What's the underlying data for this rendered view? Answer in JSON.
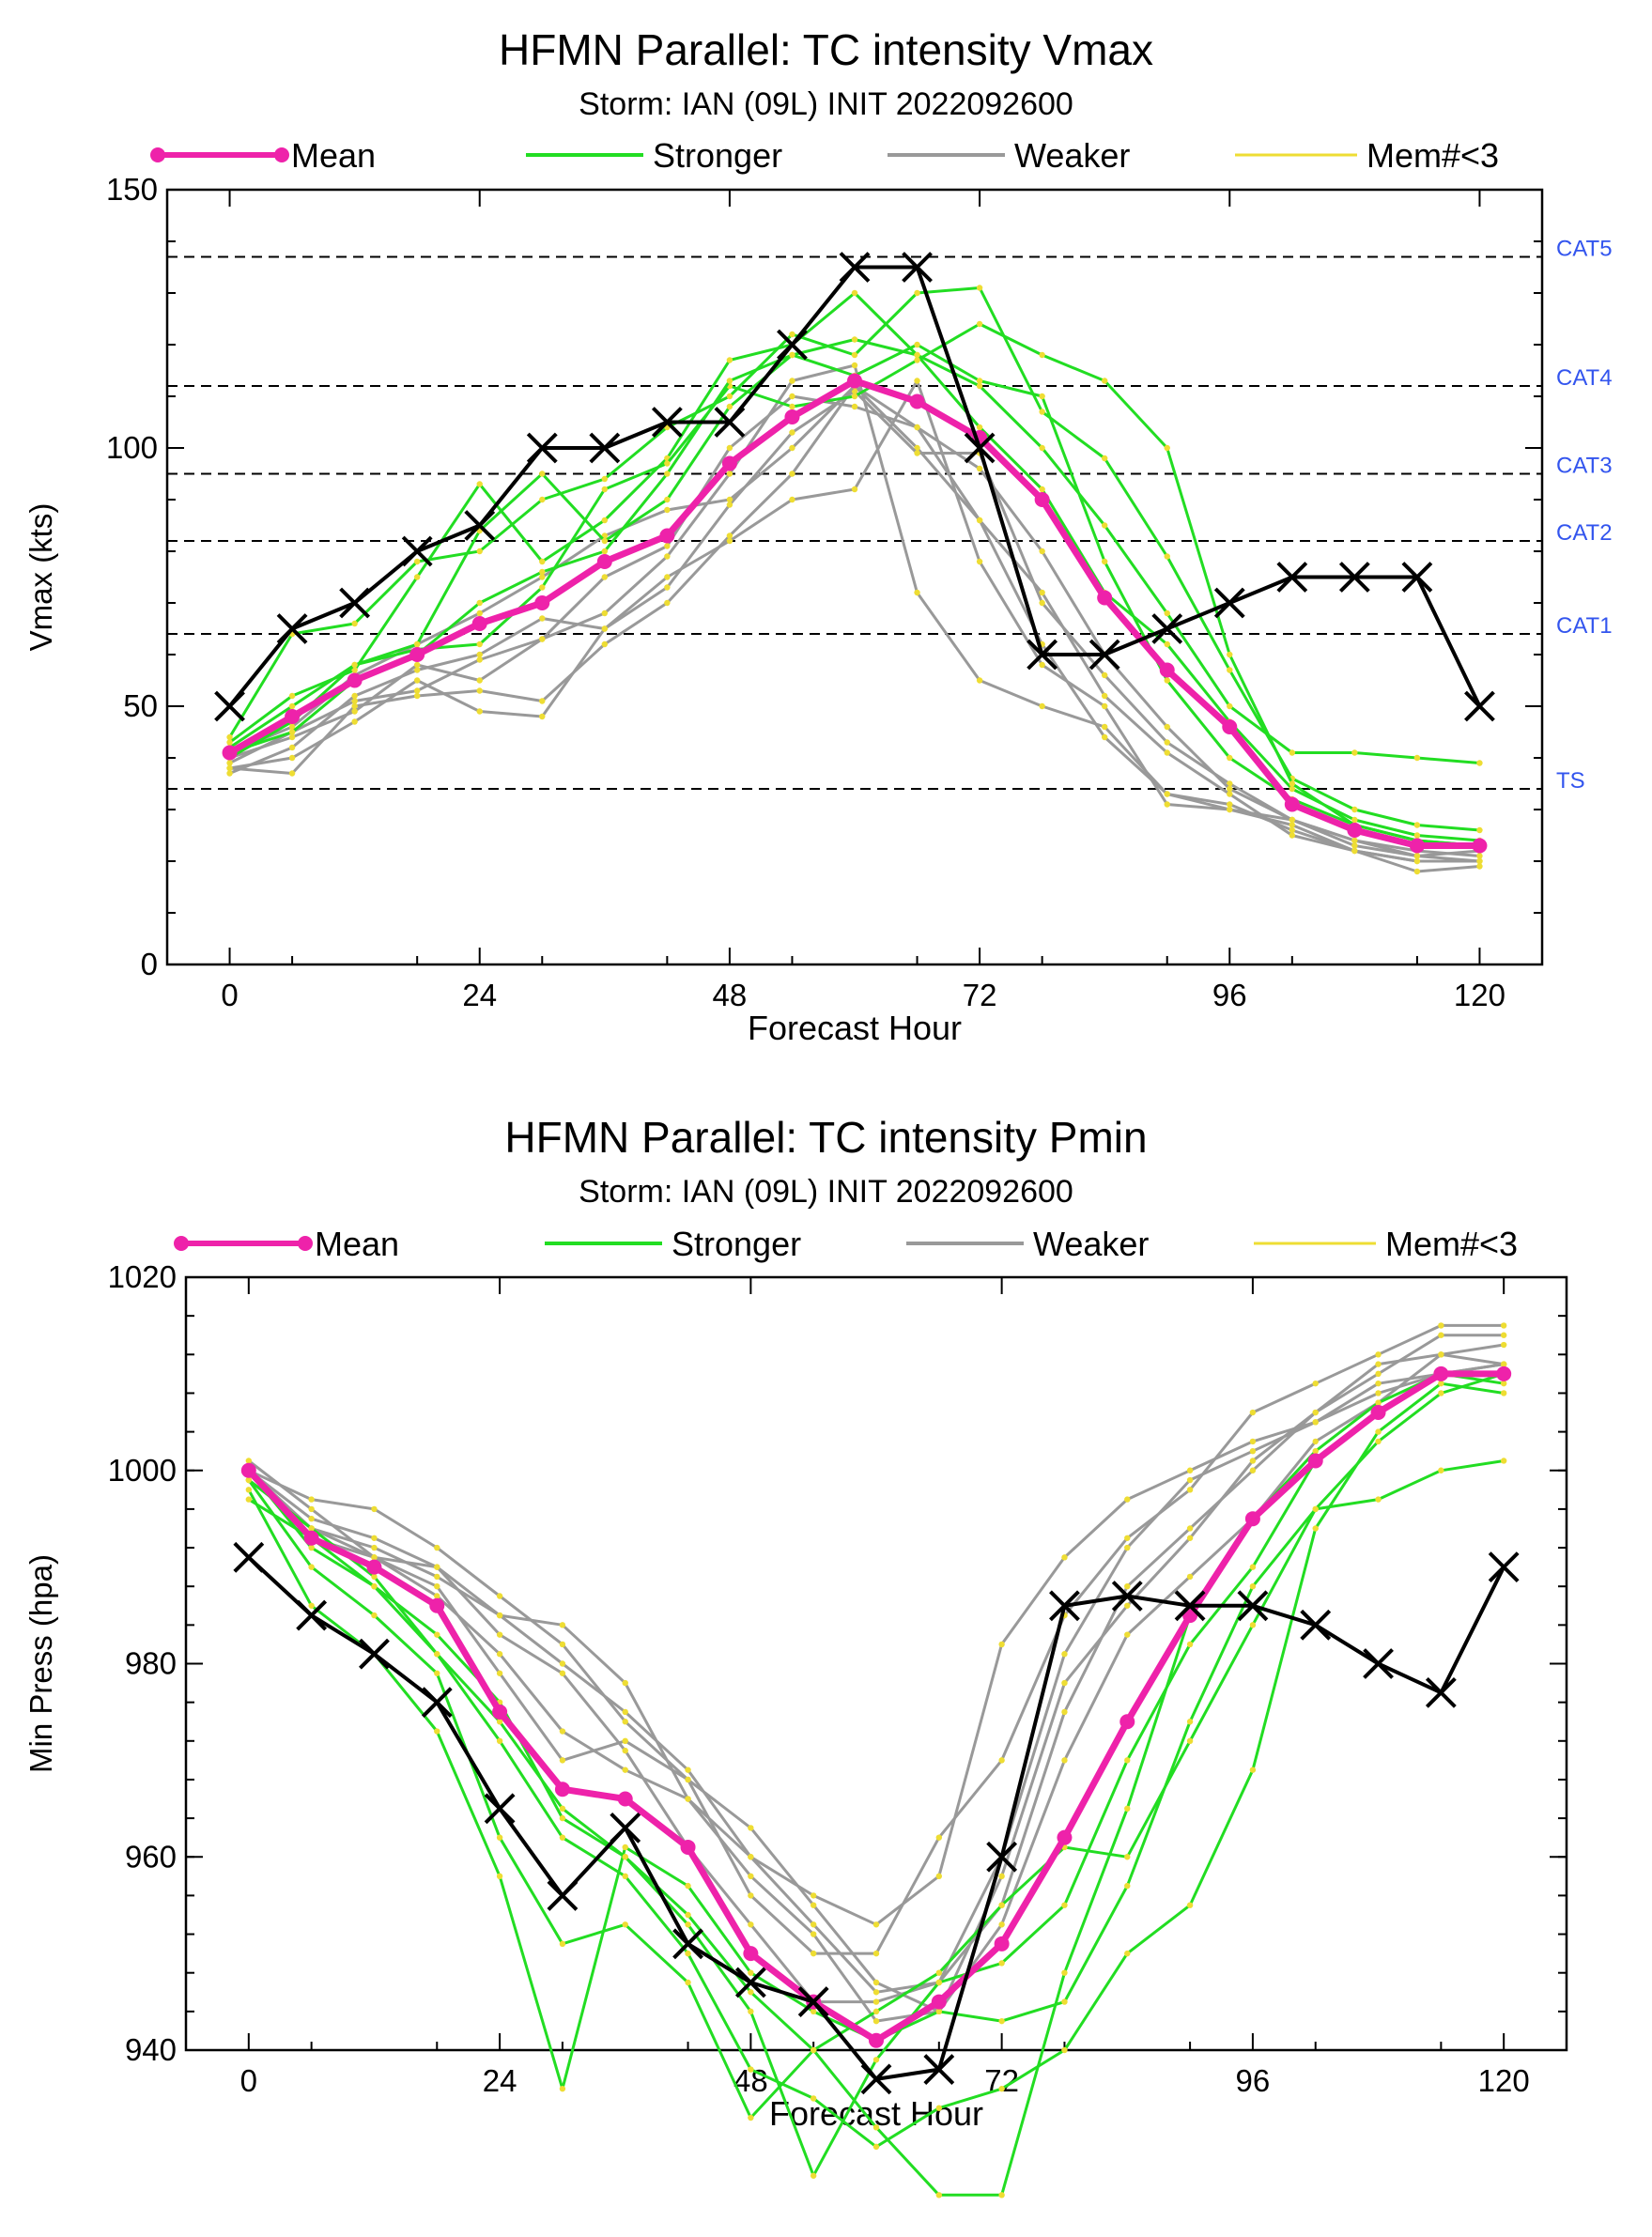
{
  "colors": {
    "mean": "#ee22aa",
    "stronger": "#22dd22",
    "weaker": "#999999",
    "members_lt3": "#eedd33",
    "observed": "#000000",
    "category_label": "#3355ee"
  },
  "legend": {
    "mean": "Mean",
    "stronger": "Stronger",
    "weaker": "Weaker",
    "members_lt3": "Mem#<3"
  },
  "chart_data": [
    {
      "type": "line",
      "title": "HFMN Parallel: TC intensity Vmax",
      "subtitle": "Storm: IAN (09L) INIT 2022092600",
      "xlabel": "Forecast Hour",
      "ylabel": "Vmax (kts)",
      "xlim": [
        -6,
        126
      ],
      "ylim": [
        0,
        150
      ],
      "xticks": [
        0,
        24,
        48,
        72,
        96,
        120
      ],
      "yticks": [
        0,
        50,
        100,
        150
      ],
      "legend_position": "top",
      "reference_lines": [
        {
          "label": "TS",
          "value": 34
        },
        {
          "label": "CAT1",
          "value": 64
        },
        {
          "label": "CAT2",
          "value": 82
        },
        {
          "label": "CAT3",
          "value": 95
        },
        {
          "label": "CAT4",
          "value": 112
        },
        {
          "label": "CAT5",
          "value": 137
        }
      ],
      "x": [
        0,
        6,
        12,
        18,
        24,
        30,
        36,
        42,
        48,
        54,
        60,
        66,
        72,
        78,
        84,
        90,
        96,
        102,
        108,
        114,
        120
      ],
      "series": [
        {
          "name": "Mean",
          "values": [
            41,
            48,
            55,
            60,
            66,
            70,
            78,
            83,
            97,
            106,
            113,
            109,
            102,
            90,
            71,
            57,
            46,
            31,
            26,
            23,
            23
          ]
        },
        {
          "group": "Stronger",
          "values": [
            42,
            50,
            58,
            62,
            84,
            95,
            82,
            90,
            108,
            118,
            121,
            118,
            112,
            100,
            85,
            68,
            50,
            41,
            41,
            40,
            39
          ]
        },
        {
          "group": "Stronger",
          "values": [
            43,
            52,
            57,
            75,
            93,
            78,
            86,
            98,
            117,
            120,
            130,
            118,
            104,
            92,
            72,
            62,
            47,
            34,
            28,
            25,
            24
          ]
        },
        {
          "group": "Stronger",
          "values": [
            44,
            64,
            66,
            78,
            80,
            90,
            94,
            104,
            110,
            122,
            118,
            130,
            131,
            107,
            98,
            79,
            57,
            36,
            30,
            27,
            26
          ]
        },
        {
          "group": "Stronger",
          "values": [
            40,
            47,
            58,
            61,
            62,
            73,
            92,
            97,
            112,
            108,
            110,
            117,
            124,
            118,
            113,
            100,
            60,
            35,
            27,
            24,
            23
          ]
        },
        {
          "group": "Stronger",
          "values": [
            41,
            45,
            55,
            60,
            70,
            76,
            80,
            95,
            113,
            118,
            114,
            120,
            113,
            110,
            78,
            55,
            40,
            32,
            27,
            24,
            23
          ]
        },
        {
          "group": "Weaker",
          "values": [
            38,
            37,
            50,
            52,
            53,
            51,
            62,
            70,
            83,
            95,
            112,
            100,
            86,
            62,
            44,
            33,
            31,
            26,
            22,
            20,
            20
          ]
        },
        {
          "group": "Weaker",
          "values": [
            38,
            40,
            47,
            55,
            49,
            48,
            65,
            75,
            82,
            90,
            92,
            113,
            78,
            58,
            50,
            31,
            30,
            27,
            22,
            18,
            19
          ]
        },
        {
          "group": "Weaker",
          "values": [
            39,
            45,
            51,
            53,
            59,
            63,
            68,
            79,
            95,
            113,
            116,
            72,
            55,
            50,
            46,
            33,
            30,
            28,
            24,
            21,
            20
          ]
        },
        {
          "group": "Weaker",
          "values": [
            37,
            42,
            52,
            57,
            60,
            67,
            65,
            73,
            89,
            103,
            111,
            99,
            99,
            70,
            56,
            43,
            35,
            28,
            23,
            21,
            22
          ]
        },
        {
          "group": "Weaker",
          "values": [
            40,
            44,
            49,
            58,
            55,
            63,
            75,
            81,
            100,
            110,
            108,
            104,
            86,
            72,
            52,
            41,
            33,
            25,
            22,
            20,
            20
          ]
        },
        {
          "group": "Weaker",
          "values": [
            41,
            46,
            56,
            62,
            68,
            75,
            83,
            88,
            90,
            100,
            112,
            104,
            96,
            80,
            60,
            46,
            34,
            28,
            24,
            22,
            21
          ]
        },
        {
          "group": "Observed",
          "values": [
            50,
            65,
            70,
            80,
            85,
            100,
            100,
            105,
            105,
            120,
            135,
            135,
            100,
            60,
            60,
            65,
            70,
            75,
            75,
            75,
            50
          ]
        }
      ]
    },
    {
      "type": "line",
      "title": "HFMN Parallel: TC intensity Pmin",
      "subtitle": "Storm: IAN (09L) INIT 2022092600",
      "xlabel": "Forecast Hour",
      "ylabel": "Min Press (hpa)",
      "xlim": [
        -6,
        126
      ],
      "ylim": [
        940,
        1020
      ],
      "xticks": [
        0,
        24,
        48,
        72,
        96,
        120
      ],
      "yticks": [
        940,
        960,
        980,
        1000,
        1020
      ],
      "legend_position": "top",
      "x": [
        0,
        6,
        12,
        18,
        24,
        30,
        36,
        42,
        48,
        54,
        60,
        66,
        72,
        78,
        84,
        90,
        96,
        102,
        108,
        114,
        120
      ],
      "series": [
        {
          "name": "Mean",
          "values": [
            1000,
            993,
            990,
            986,
            975,
            967,
            966,
            961,
            950,
            945,
            941,
            945,
            951,
            962,
            974,
            985,
            995,
            1001,
            1006,
            1010,
            1010
          ]
        },
        {
          "group": "Stronger",
          "values": [
            998,
            986,
            981,
            973,
            958,
            936,
            961,
            957,
            948,
            944,
            941,
            944,
            943,
            945,
            957,
            974,
            988,
            996,
            997,
            1000,
            1001
          ]
        },
        {
          "group": "Stronger",
          "values": [
            999,
            990,
            985,
            979,
            962,
            951,
            953,
            947,
            933,
            940,
            944,
            948,
            955,
            961,
            960,
            972,
            984,
            996,
            1003,
            1008,
            1010
          ]
        },
        {
          "group": "Stronger",
          "values": [
            997,
            993,
            988,
            981,
            972,
            962,
            958,
            950,
            938,
            935,
            930,
            934,
            936,
            940,
            950,
            955,
            969,
            994,
            1004,
            1009,
            1008
          ]
        },
        {
          "group": "Stronger",
          "values": [
            1000,
            992,
            988,
            983,
            976,
            964,
            960,
            953,
            944,
            927,
            939,
            947,
            949,
            955,
            970,
            982,
            990,
            1001,
            1006,
            1010,
            1009
          ]
        },
        {
          "group": "Stronger",
          "values": [
            999,
            994,
            989,
            981,
            974,
            965,
            960,
            954,
            946,
            940,
            932,
            925,
            925,
            948,
            965,
            985,
            995,
            1002,
            1007,
            1010,
            1010
          ]
        },
        {
          "group": "Weaker",
          "values": [
            1001,
            996,
            991,
            990,
            983,
            979,
            971,
            961,
            953,
            945,
            945,
            947,
            955,
            975,
            988,
            994,
            1000,
            1006,
            1010,
            1014,
            1014
          ]
        },
        {
          "group": "Weaker",
          "values": [
            1000,
            994,
            992,
            989,
            985,
            980,
            975,
            969,
            960,
            956,
            953,
            958,
            982,
            991,
            997,
            1000,
            1003,
            1005,
            1008,
            1010,
            1011
          ]
        },
        {
          "group": "Weaker",
          "values": [
            1000,
            993,
            991,
            988,
            979,
            970,
            972,
            968,
            956,
            950,
            950,
            962,
            970,
            985,
            993,
            998,
            1006,
            1009,
            1012,
            1015,
            1015
          ]
        },
        {
          "group": "Weaker",
          "values": [
            999,
            994,
            991,
            987,
            981,
            973,
            969,
            966,
            958,
            952,
            943,
            944,
            953,
            970,
            983,
            989,
            995,
            1003,
            1007,
            1012,
            1013
          ]
        },
        {
          "group": "Weaker",
          "values": [
            1000,
            995,
            993,
            990,
            985,
            984,
            978,
            966,
            960,
            953,
            946,
            947,
            960,
            981,
            992,
            999,
            1002,
            1005,
            1009,
            1010,
            1011
          ]
        },
        {
          "group": "Weaker",
          "values": [
            1000,
            997,
            996,
            992,
            987,
            982,
            974,
            968,
            963,
            955,
            947,
            944,
            958,
            978,
            986,
            993,
            1001,
            1006,
            1011,
            1012,
            1011
          ]
        },
        {
          "group": "Observed",
          "values": [
            991,
            985,
            981,
            976,
            965,
            956,
            963,
            951,
            947,
            945,
            937,
            938,
            960,
            986,
            987,
            986,
            986,
            984,
            980,
            977,
            990
          ]
        }
      ]
    }
  ]
}
